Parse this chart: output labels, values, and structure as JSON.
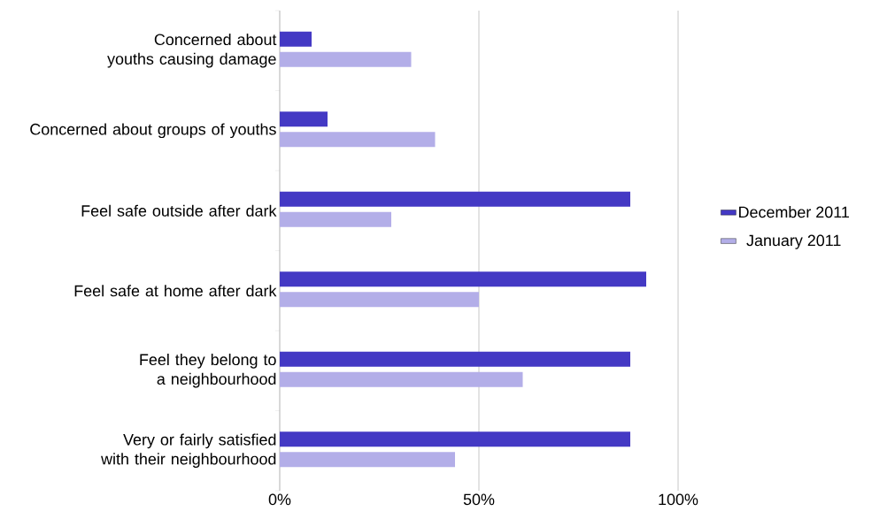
{
  "chart_data": {
    "type": "bar",
    "orientation": "horizontal",
    "categories": [
      "Concerned about youths causing damage",
      "Concerned about groups of youths",
      "Feel safe outside after dark",
      "Feel safe at home after dark",
      "Feel they belong to a neighbourhood",
      "Very or fairly satisfied with their neighbourhood"
    ],
    "series": [
      {
        "name": "December 2011",
        "color": "#4439c4",
        "values": [
          8,
          12,
          88,
          92,
          88,
          88
        ]
      },
      {
        "name": "January 2011",
        "color": "#b3aee8",
        "values": [
          33,
          39,
          28,
          50,
          61,
          44
        ]
      }
    ],
    "xlim": [
      0,
      100
    ],
    "xticks": [
      {
        "value": 0,
        "label": "0%"
      },
      {
        "value": 50,
        "label": "50%"
      },
      {
        "value": 100,
        "label": "100%"
      }
    ],
    "grid": "x",
    "legend": "right"
  }
}
